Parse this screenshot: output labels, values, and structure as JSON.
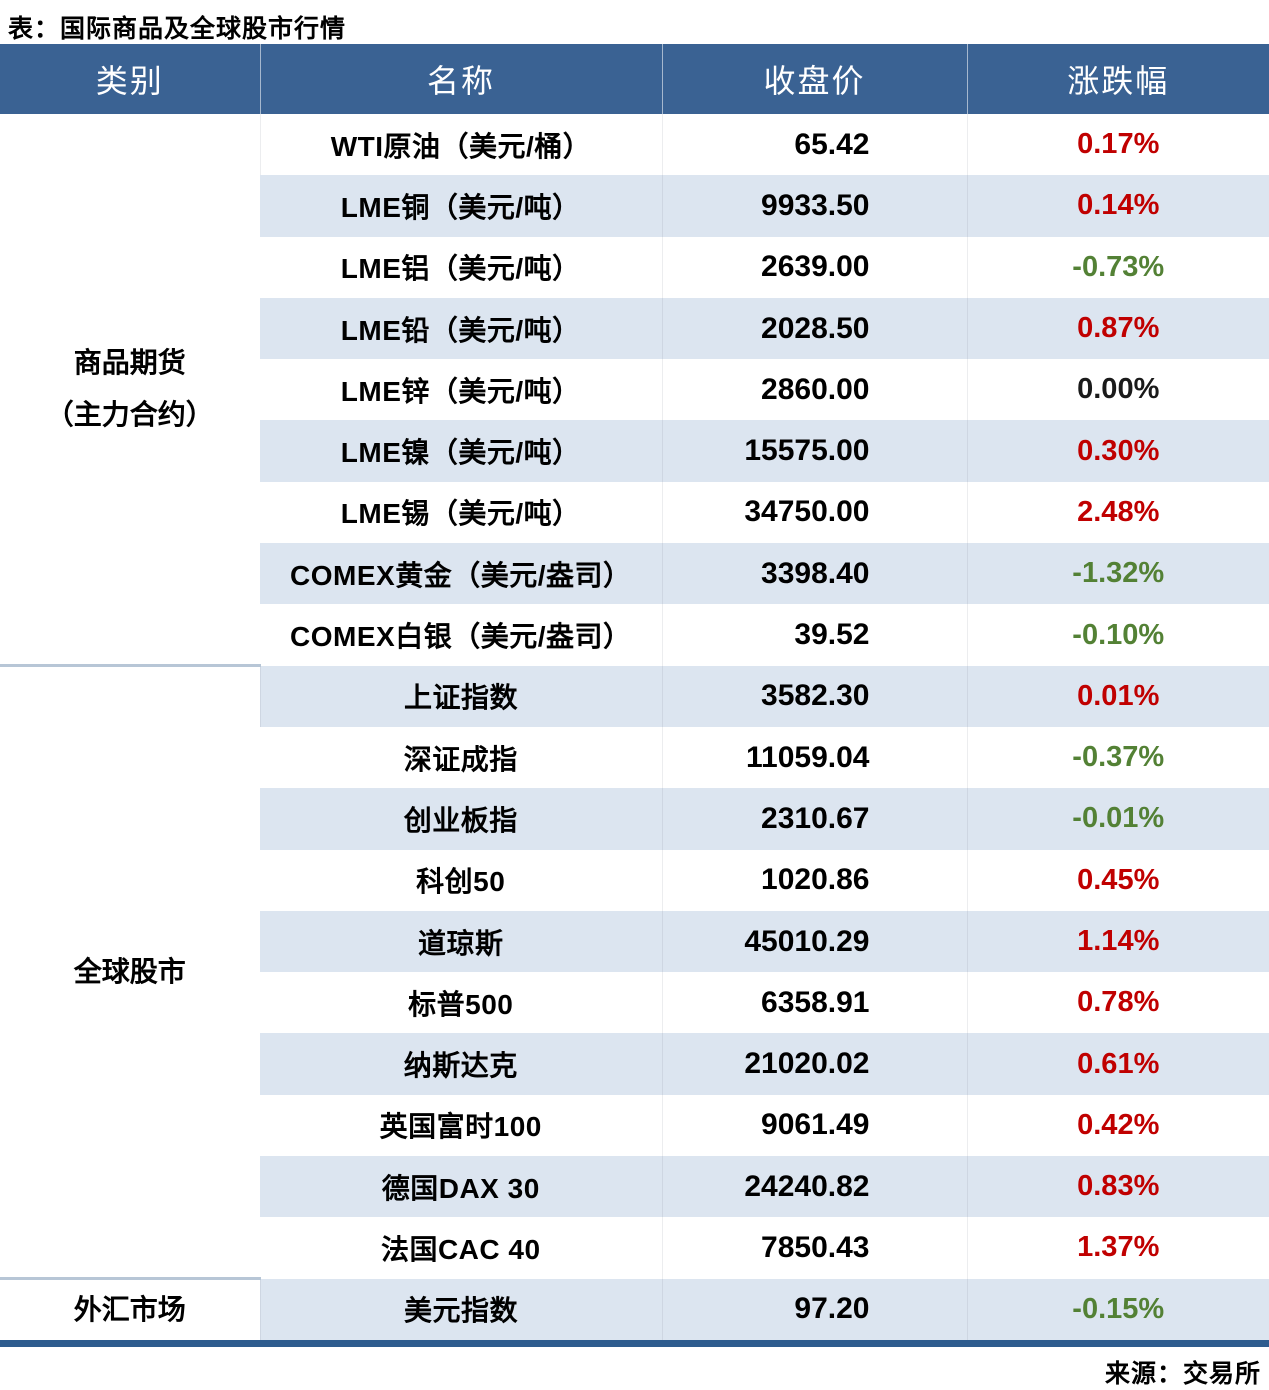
{
  "title": "表：国际商品及全球股市行情",
  "source": "来源：交易所",
  "colors": {
    "header_bg": "#3A6293",
    "stripe_bg": "#DCE5F0",
    "up": "#C00000",
    "down": "#538135",
    "flat": "#1A1A1A",
    "group_separator": "#B7C6D6",
    "bottom_bar": "#2E5C8E"
  },
  "table": {
    "headers": [
      "类别",
      "名称",
      "收盘价",
      "涨跌幅"
    ],
    "groups": [
      {
        "category_lines": [
          "商品期货",
          "（主力合约）"
        ],
        "rows": [
          {
            "name": "WTI原油（美元/桶）",
            "close": "65.42",
            "change": "0.17%",
            "direction": "up"
          },
          {
            "name": "LME铜（美元/吨）",
            "close": "9933.50",
            "change": "0.14%",
            "direction": "up"
          },
          {
            "name": "LME铝（美元/吨）",
            "close": "2639.00",
            "change": "-0.73%",
            "direction": "down"
          },
          {
            "name": "LME铅（美元/吨）",
            "close": "2028.50",
            "change": "0.87%",
            "direction": "up"
          },
          {
            "name": "LME锌（美元/吨）",
            "close": "2860.00",
            "change": "0.00%",
            "direction": "flat"
          },
          {
            "name": "LME镍（美元/吨）",
            "close": "15575.00",
            "change": "0.30%",
            "direction": "up"
          },
          {
            "name": "LME锡（美元/吨）",
            "close": "34750.00",
            "change": "2.48%",
            "direction": "up"
          },
          {
            "name": "COMEX黄金（美元/盎司）",
            "close": "3398.40",
            "change": "-1.32%",
            "direction": "down"
          },
          {
            "name": "COMEX白银（美元/盎司）",
            "close": "39.52",
            "change": "-0.10%",
            "direction": "down"
          }
        ]
      },
      {
        "category_lines": [
          "全球股市"
        ],
        "rows": [
          {
            "name": "上证指数",
            "close": "3582.30",
            "change": "0.01%",
            "direction": "up"
          },
          {
            "name": "深证成指",
            "close": "11059.04",
            "change": "-0.37%",
            "direction": "down"
          },
          {
            "name": "创业板指",
            "close": "2310.67",
            "change": "-0.01%",
            "direction": "down"
          },
          {
            "name": "科创50",
            "close": "1020.86",
            "change": "0.45%",
            "direction": "up"
          },
          {
            "name": "道琼斯",
            "close": "45010.29",
            "change": "1.14%",
            "direction": "up"
          },
          {
            "name": "标普500",
            "close": "6358.91",
            "change": "0.78%",
            "direction": "up"
          },
          {
            "name": "纳斯达克",
            "close": "21020.02",
            "change": "0.61%",
            "direction": "up"
          },
          {
            "name": "英国富时100",
            "close": "9061.49",
            "change": "0.42%",
            "direction": "up"
          },
          {
            "name": "德国DAX 30",
            "close": "24240.82",
            "change": "0.83%",
            "direction": "up"
          },
          {
            "name": "法国CAC 40",
            "close": "7850.43",
            "change": "1.37%",
            "direction": "up"
          }
        ]
      },
      {
        "category_lines": [
          "外汇市场"
        ],
        "rows": [
          {
            "name": "美元指数",
            "close": "97.20",
            "change": "-0.15%",
            "direction": "down"
          }
        ]
      }
    ]
  }
}
